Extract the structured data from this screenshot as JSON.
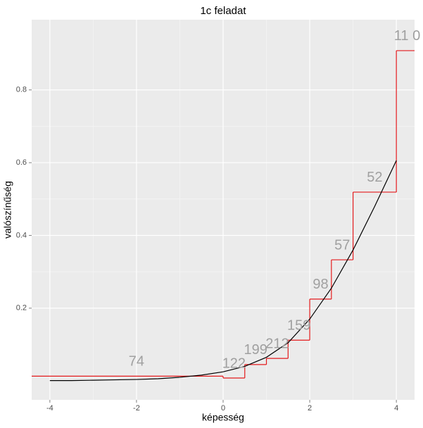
{
  "chart_data": {
    "type": "step",
    "title": "1c feladat",
    "x_label": "képesség",
    "y_label": "valószínűség",
    "xlim": [
      -4.42,
      4.42
    ],
    "ylim": [
      -0.052,
      0.993
    ],
    "xticks": [
      -4,
      -2,
      0,
      2,
      4
    ],
    "yticks": [
      0.2,
      0.4,
      0.6,
      0.8
    ],
    "grid": true,
    "step": {
      "color": "#e41a1c",
      "edges": [
        -4,
        0,
        0.5,
        1,
        1.5,
        2,
        2.5,
        3,
        4,
        4.5
      ],
      "values": [
        0.013,
        0.008,
        0.045,
        0.062,
        0.112,
        0.225,
        0.333,
        0.519,
        0.908
      ],
      "count_labels": [
        "74",
        "122",
        "199",
        "212",
        "159",
        "98",
        "57",
        "52",
        "11 0"
      ]
    },
    "curve": {
      "color": "#000000",
      "x": [
        -4,
        -3.5,
        -3,
        -2.5,
        -2,
        -1.5,
        -1,
        -0.5,
        0,
        0.5,
        1,
        1.5,
        2,
        2.5,
        3,
        3.5,
        4
      ],
      "values": [
        0.001,
        0.001,
        0.002,
        0.003,
        0.004,
        0.006,
        0.01,
        0.016,
        0.025,
        0.04,
        0.065,
        0.105,
        0.17,
        0.255,
        0.36,
        0.48,
        0.606
      ]
    }
  }
}
